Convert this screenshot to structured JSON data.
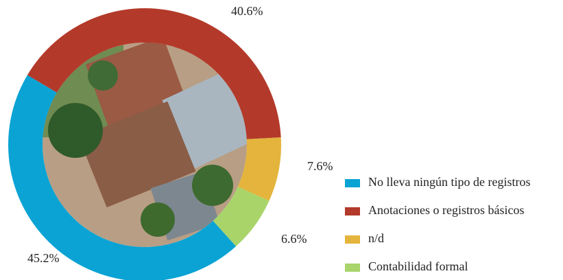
{
  "chart_data": {
    "type": "donut",
    "categories": [
      "No lleva ningún tipo de registros",
      "Anotaciones o registros básicos",
      "n/d",
      "Contabilidad formal"
    ],
    "values": [
      45.2,
      40.6,
      7.6,
      6.6
    ],
    "value_labels": [
      "45.2%",
      "40.6%",
      "7.6%",
      "6.6%"
    ],
    "colors": [
      "#0aa3d4",
      "#b33a2a",
      "#e4b43c",
      "#a8d46a"
    ],
    "legend": "right"
  }
}
